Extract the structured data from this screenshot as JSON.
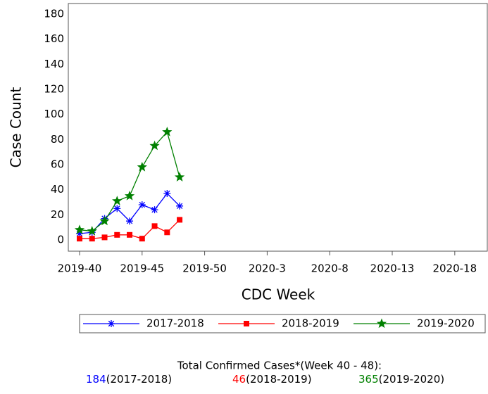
{
  "chart_data": {
    "type": "line",
    "xlabel": "CDC Week",
    "ylabel": "Case Count",
    "x": [
      0,
      1,
      2,
      3,
      4,
      5,
      6,
      7,
      8
    ],
    "xlim": [
      -0.9,
      32.6
    ],
    "xticks": [
      {
        "value": 0,
        "label": "2019-40"
      },
      {
        "value": 5,
        "label": "2019-45"
      },
      {
        "value": 10,
        "label": "2019-50"
      },
      {
        "value": 15,
        "label": "2020-3"
      },
      {
        "value": 20,
        "label": "2020-8"
      },
      {
        "value": 25,
        "label": "2020-13"
      },
      {
        "value": 30,
        "label": "2020-18"
      }
    ],
    "ylim": [
      -9,
      188.4
    ],
    "yticks": [
      0,
      20,
      40,
      60,
      80,
      100,
      120,
      140,
      160,
      180
    ],
    "series": [
      {
        "name": "2017-2018",
        "color": "#0000ff",
        "marker": "asterisk",
        "values": [
          5,
          6,
          17,
          25,
          15,
          28,
          24,
          37,
          27
        ]
      },
      {
        "name": "2018-2019",
        "color": "#ff0000",
        "marker": "square",
        "values": [
          1,
          1,
          2,
          4,
          4,
          1,
          11,
          6,
          16
        ]
      },
      {
        "name": "2019-2020",
        "color": "#008000",
        "marker": "star",
        "values": [
          8,
          7,
          15,
          31,
          35,
          58,
          75,
          86,
          50
        ]
      }
    ]
  },
  "footer": {
    "title": "Total Confirmed Cases*(Week 40 - 48):",
    "totals": [
      {
        "count": 184,
        "period": "(2017-2018)",
        "color": "#0000ff"
      },
      {
        "count": 46,
        "period": "(2018-2019)",
        "color": "#ff0000"
      },
      {
        "count": 365,
        "period": "(2019-2020)",
        "color": "#008000"
      }
    ]
  }
}
